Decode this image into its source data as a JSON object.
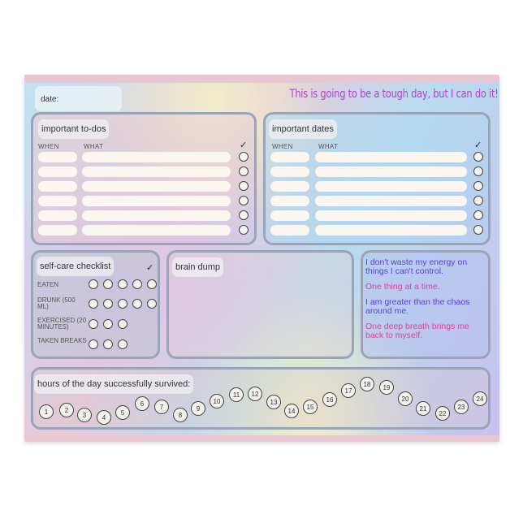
{
  "header": {
    "date_label": "date:",
    "motto": "This is going to be a tough day, but I can do it!"
  },
  "todos": {
    "title": "important to-dos",
    "col_when": "WHEN",
    "col_what": "WHAT",
    "check": "✓",
    "rows": 6
  },
  "dates": {
    "title": "important dates",
    "col_when": "WHEN",
    "col_what": "WHAT",
    "check": "✓",
    "rows": 6
  },
  "selfcare": {
    "title": "self-care checklist",
    "check": "✓",
    "items": [
      {
        "label": "EATEN",
        "circles": 5
      },
      {
        "label": "DRUNK (500 ML)",
        "circles": 5
      },
      {
        "label": "EXERCISED (20 MINUTES)",
        "circles": 3
      },
      {
        "label": "TAKEN BREAKS",
        "circles": 3
      }
    ]
  },
  "brain_dump": {
    "title": "brain dump"
  },
  "affirmations": [
    {
      "text": "I don't waste my energy on things I can't control.",
      "color": "#5a3fd6"
    },
    {
      "text": "One thing at a time.",
      "color": "#e0409a"
    },
    {
      "text": "I am greater than the chaos around me.",
      "color": "#5a3fd6"
    },
    {
      "text": "One deep breath brings me back to myself.",
      "color": "#e0409a"
    }
  ],
  "hours": {
    "title": "hours of the day successfully survived:",
    "labels": [
      "1",
      "2",
      "3",
      "4",
      "5",
      "6",
      "7",
      "8",
      "9",
      "10",
      "11",
      "12",
      "13",
      "14",
      "15",
      "16",
      "17",
      "18",
      "19",
      "20",
      "21",
      "22",
      "23",
      "24"
    ]
  }
}
